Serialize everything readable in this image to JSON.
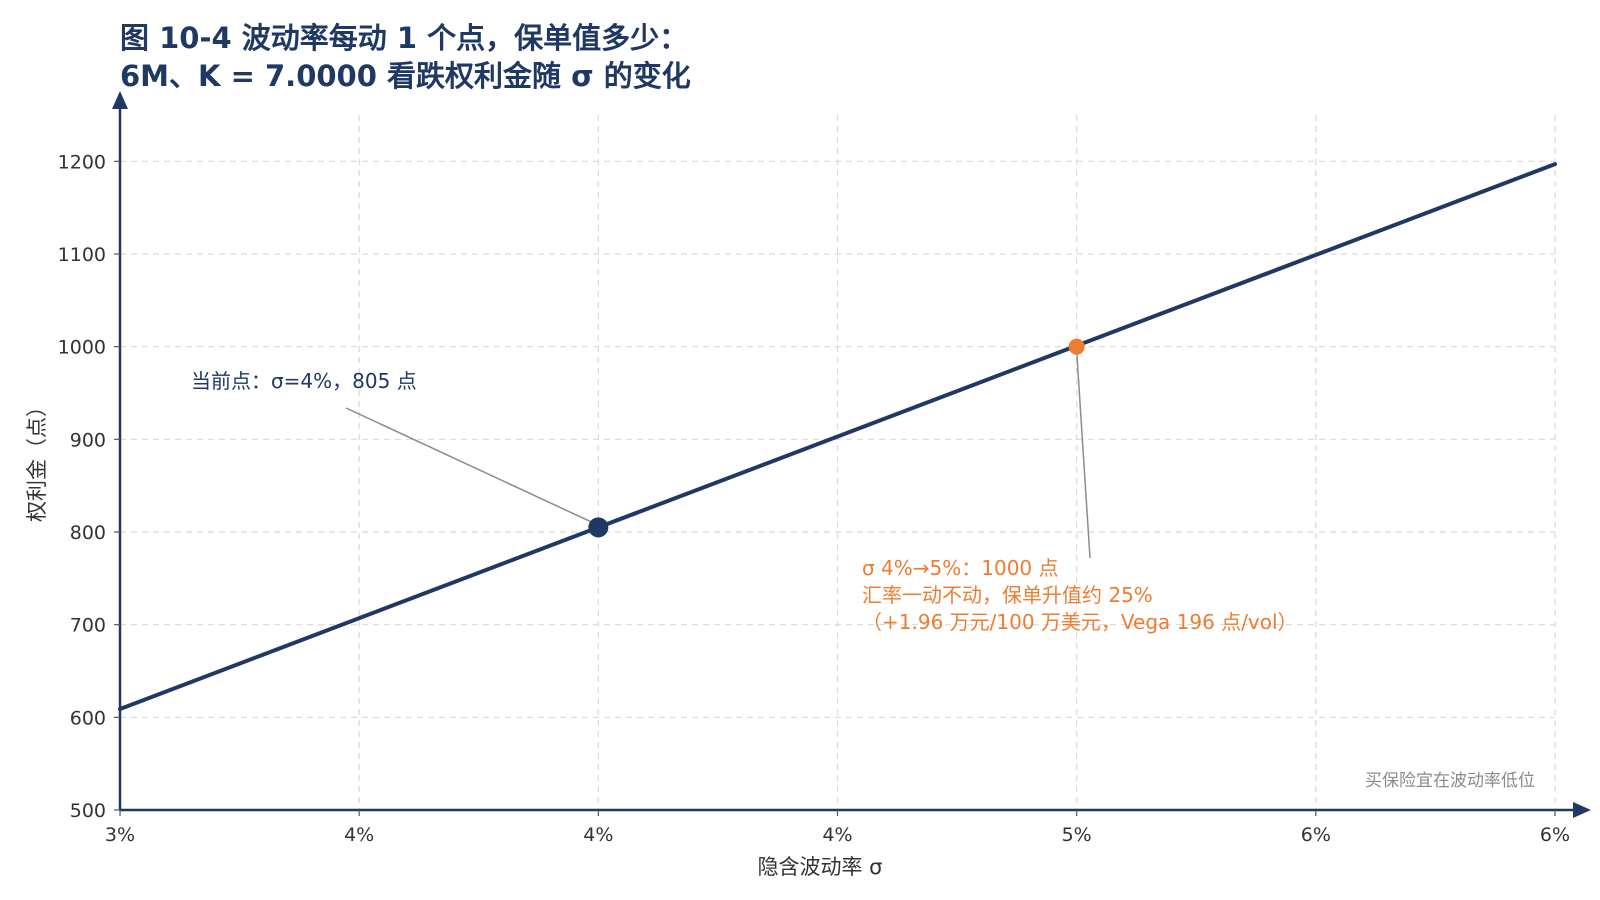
{
  "chart_data": {
    "type": "line",
    "title_line1": "图 10-4 波动率每动 1 个点，保单值多少：",
    "title_line2": "6M、K = 7.0000 看跌权利金随 σ 的变化",
    "xlabel": "隐含波动率 σ",
    "ylabel": "权利金（点）",
    "xlim": [
      3.0,
      6.0
    ],
    "ylim": [
      500,
      1250
    ],
    "x_ticks": [
      3.0,
      3.5,
      4.0,
      4.5,
      5.0,
      5.5,
      6.0
    ],
    "x_tick_labels": [
      "3%",
      "4%",
      "4%",
      "4%",
      "5%",
      "6%",
      "6%"
    ],
    "y_ticks": [
      500,
      600,
      700,
      800,
      900,
      1000,
      1100,
      1200
    ],
    "y_tick_labels": [
      "500",
      "600",
      "700",
      "800",
      "900",
      "1000",
      "1100",
      "1200"
    ],
    "grid": true,
    "series": [
      {
        "x": [
          3.0,
          6.0
        ],
        "y": [
          609,
          1197
        ],
        "color": "#1f3864"
      }
    ],
    "points": [
      {
        "x": 4.0,
        "y": 805,
        "color": "#1f3864"
      },
      {
        "x": 5.0,
        "y": 1000,
        "color": "#ed7d31"
      }
    ],
    "annotations": [
      {
        "lines": [
          "当前点：σ=4%，805 点"
        ],
        "color": "#1f3864",
        "target_x": 4.0,
        "target_y": 805
      },
      {
        "lines": [
          "σ 4%→5%：1000 点",
          "汇率一动不动，保单升值约 25%",
          "（+1.96 万元/100 万美元，Vega 196 点/vol）"
        ],
        "color": "#ed7d31",
        "target_x": 5.0,
        "target_y": 1000
      }
    ],
    "note": "买保险宜在波动率低位"
  },
  "colors": {
    "axis": "#1f3864",
    "grid": "#d9d9d9",
    "leader": "#8c8c8c"
  }
}
